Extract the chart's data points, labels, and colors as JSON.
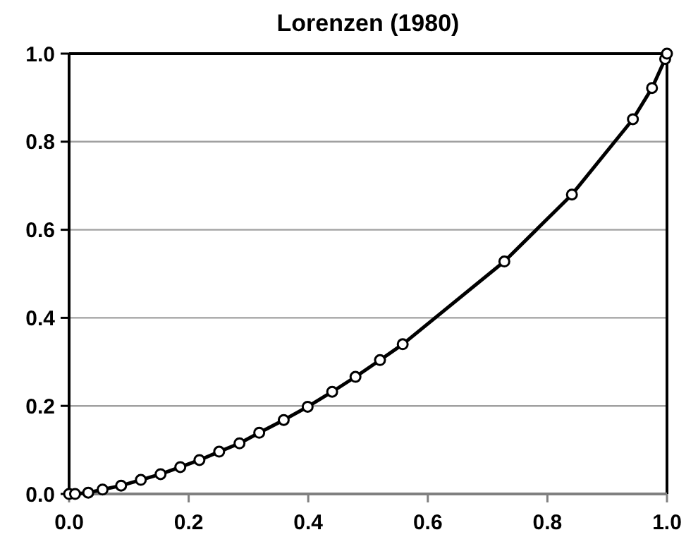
{
  "chart_data": {
    "type": "line",
    "title": "Lorenzen (1980)",
    "x": [
      0,
      0.01,
      0.032,
      0.056,
      0.087,
      0.12,
      0.153,
      0.186,
      0.218,
      0.251,
      0.285,
      0.318,
      0.359,
      0.399,
      0.44,
      0.479,
      0.52,
      0.558,
      0.728,
      0.841,
      0.943,
      0.975,
      0.997,
      1.0
    ],
    "values": [
      0,
      0,
      0.003,
      0.01,
      0.019,
      0.032,
      0.045,
      0.061,
      0.077,
      0.096,
      0.115,
      0.139,
      0.168,
      0.198,
      0.232,
      0.266,
      0.304,
      0.34,
      0.528,
      0.68,
      0.851,
      0.922,
      0.988,
      1.0
    ],
    "color": "#000000",
    "marker": "circle",
    "line_style": "solid",
    "xlim": [
      0,
      1
    ],
    "ylim": [
      0,
      1
    ],
    "xticks": [
      {
        "value": 0,
        "label": "0.0"
      },
      {
        "value": 0.2,
        "label": "0.2"
      },
      {
        "value": 0.4,
        "label": "0.4"
      },
      {
        "value": 0.6,
        "label": "0.6"
      },
      {
        "value": 0.8,
        "label": "0.8"
      },
      {
        "value": 1,
        "label": "1.0"
      }
    ],
    "yticks": [
      {
        "value": 0,
        "label": "0.0"
      },
      {
        "value": 0.2,
        "label": "0.2"
      },
      {
        "value": 0.4,
        "label": "0.4"
      },
      {
        "value": 0.6,
        "label": "0.6"
      },
      {
        "value": 0.8,
        "label": "0.8"
      },
      {
        "value": 1,
        "label": "1.0"
      }
    ],
    "grid": "y"
  }
}
